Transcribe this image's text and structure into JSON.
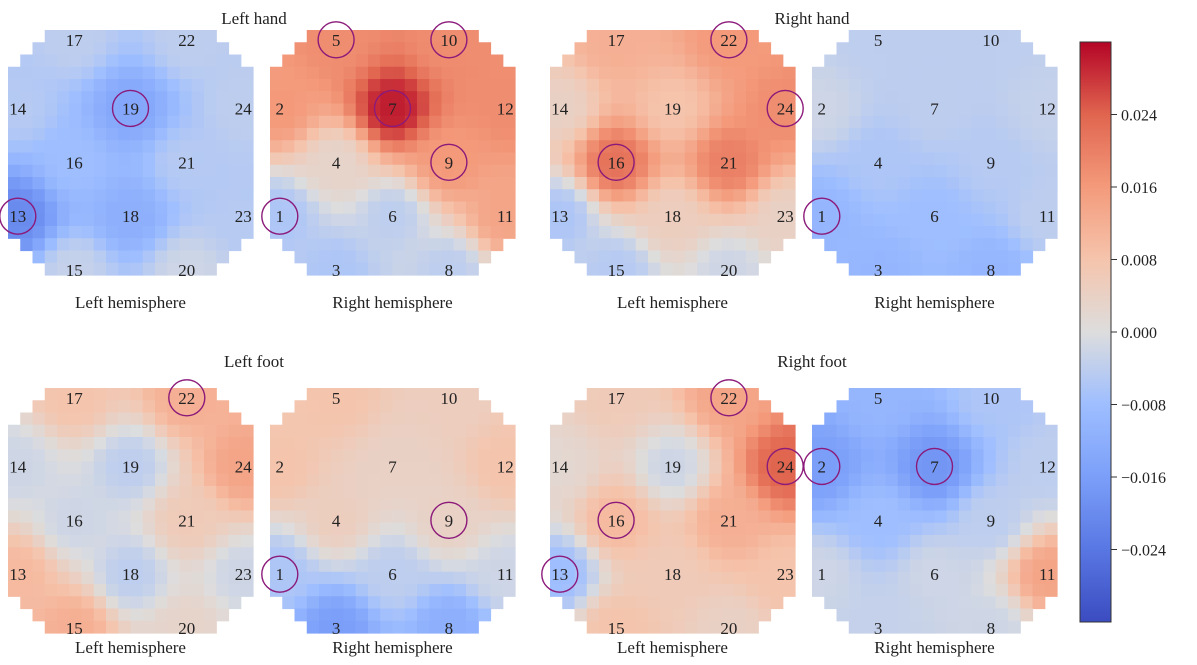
{
  "chart_data": {
    "type": "heatmap",
    "colorbar": {
      "range": [
        -0.032,
        0.032
      ],
      "ticks": [
        "0.024",
        "0.016",
        "0.008",
        "0.000",
        "−0.008",
        "−0.016",
        "−0.024"
      ],
      "tick_values": [
        0.024,
        0.016,
        0.008,
        0.0,
        -0.008,
        -0.016,
        -0.024
      ],
      "colormap": "coolwarm",
      "low_color": "#3b4cc0",
      "mid_color": "#dddddd",
      "high_color": "#b40426"
    },
    "panels": [
      {
        "id": "lh",
        "title": "Left hand",
        "maps": [
          {
            "hemisphere": "Left hemisphere",
            "side": "left",
            "highlighted": [
              "19",
              "13"
            ],
            "channels": {
              "17": -0.004,
              "22": -0.004,
              "14": -0.005,
              "19": -0.014,
              "24": -0.004,
              "16": -0.008,
              "21": -0.005,
              "13": -0.02,
              "18": -0.012,
              "23": -0.005,
              "15": -0.003,
              "20": -0.002
            }
          },
          {
            "hemisphere": "Right hemisphere",
            "side": "right",
            "highlighted": [
              "5",
              "10",
              "7",
              "9",
              "1"
            ],
            "channels": {
              "5": 0.018,
              "10": 0.018,
              "2": 0.016,
              "7": 0.03,
              "12": 0.018,
              "4": 0.003,
              "9": 0.016,
              "1": -0.006,
              "6": -0.004,
              "11": 0.014,
              "3": -0.006,
              "8": -0.004
            }
          }
        ]
      },
      {
        "id": "rh",
        "title": "Right hand",
        "maps": [
          {
            "hemisphere": "Left hemisphere",
            "side": "left",
            "highlighted": [
              "22",
              "24",
              "16"
            ],
            "channels": {
              "17": 0.012,
              "22": 0.016,
              "14": 0.004,
              "19": 0.008,
              "24": 0.018,
              "16": 0.022,
              "21": 0.02,
              "13": -0.006,
              "18": 0.005,
              "23": 0.004,
              "15": -0.005,
              "20": -0.002
            }
          },
          {
            "hemisphere": "Right hemisphere",
            "side": "right",
            "highlighted": [
              "1"
            ],
            "channels": {
              "5": -0.004,
              "10": -0.004,
              "2": -0.002,
              "7": -0.004,
              "12": -0.003,
              "4": -0.006,
              "9": -0.005,
              "1": -0.01,
              "6": -0.008,
              "11": -0.004,
              "3": -0.01,
              "8": -0.01
            }
          }
        ]
      },
      {
        "id": "lf",
        "title": "Left foot",
        "maps": [
          {
            "hemisphere": "Left hemisphere",
            "side": "left",
            "highlighted": [
              "22"
            ],
            "channels": {
              "17": 0.008,
              "22": 0.012,
              "14": -0.002,
              "19": -0.004,
              "24": 0.014,
              "16": -0.002,
              "21": 0.006,
              "13": 0.01,
              "18": -0.004,
              "23": -0.002,
              "15": 0.012,
              "20": 0.003
            }
          },
          {
            "hemisphere": "Right hemisphere",
            "side": "right",
            "highlighted": [
              "9",
              "1"
            ],
            "channels": {
              "5": 0.008,
              "10": 0.005,
              "2": 0.008,
              "7": 0.004,
              "12": 0.008,
              "4": 0.005,
              "9": 0.004,
              "1": -0.006,
              "6": -0.004,
              "11": -0.002,
              "3": -0.016,
              "8": -0.012
            }
          }
        ]
      },
      {
        "id": "rf",
        "title": "Right foot",
        "maps": [
          {
            "hemisphere": "Left hemisphere",
            "side": "left",
            "highlighted": [
              "22",
              "24",
              "16",
              "13"
            ],
            "channels": {
              "17": 0.006,
              "22": 0.014,
              "14": 0.002,
              "19": -0.002,
              "24": 0.024,
              "16": 0.01,
              "21": 0.012,
              "13": -0.008,
              "18": 0.006,
              "23": 0.008,
              "15": 0.008,
              "20": 0.004
            }
          },
          {
            "hemisphere": "Right hemisphere",
            "side": "right",
            "highlighted": [
              "2",
              "7"
            ],
            "channels": {
              "5": -0.01,
              "10": -0.006,
              "2": -0.016,
              "7": -0.018,
              "12": -0.004,
              "4": -0.008,
              "9": -0.004,
              "1": -0.002,
              "6": -0.002,
              "11": 0.014,
              "3": -0.003,
              "8": -0.002
            }
          }
        ]
      }
    ]
  }
}
